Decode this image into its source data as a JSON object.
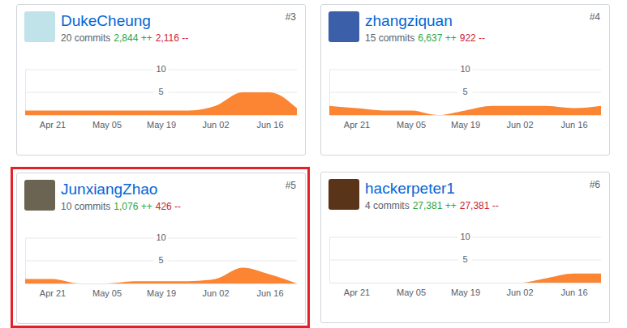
{
  "chart_data": [
    {
      "type": "area",
      "title": "DukeCheung",
      "subtitle": "20 commits",
      "annotations": [
        "#3",
        "2,844 ++",
        "2,116 --"
      ],
      "categories": [
        null,
        "Apr 21",
        null,
        "May 05",
        null,
        "May 19",
        null,
        "Jun 02",
        null,
        "Jun 16",
        null
      ],
      "values": [
        1,
        1,
        1,
        1,
        1,
        1,
        1,
        2,
        5,
        5,
        1.5
      ],
      "color": "#fb8532",
      "ylim": [
        0,
        10
      ],
      "yticks": [
        5,
        10
      ],
      "grid": true
    },
    {
      "type": "area",
      "title": "zhangziquan",
      "subtitle": "15 commits",
      "annotations": [
        "#4",
        "6,637 ++",
        "922 --"
      ],
      "categories": [
        null,
        "Apr 21",
        null,
        "May 05",
        null,
        "May 19",
        null,
        "Jun 02",
        null,
        "Jun 16",
        null
      ],
      "values": [
        2,
        1.5,
        1,
        1,
        0,
        1,
        2,
        2,
        2,
        1.5,
        2
      ],
      "color": "#fb8532",
      "ylim": [
        0,
        10
      ],
      "yticks": [
        5,
        10
      ],
      "grid": true
    },
    {
      "type": "area",
      "title": "JunxiangZhao",
      "subtitle": "10 commits",
      "annotations": [
        "#5",
        "1,076 ++",
        "426 --"
      ],
      "categories": [
        null,
        "Apr 21",
        null,
        "May 05",
        null,
        "May 19",
        null,
        "Jun 02",
        null,
        "Jun 16",
        null
      ],
      "values": [
        1,
        1,
        0,
        0,
        0.5,
        0.5,
        0.5,
        1,
        3.5,
        2,
        0
      ],
      "color": "#fb8532",
      "ylim": [
        0,
        10
      ],
      "yticks": [
        5,
        10
      ],
      "grid": true
    },
    {
      "type": "area",
      "title": "hackerpeter1",
      "subtitle": "4 commits",
      "annotations": [
        "#6",
        "27,381 ++",
        "27,381 --"
      ],
      "categories": [
        null,
        "Apr 21",
        null,
        "May 05",
        null,
        "May 19",
        null,
        "Jun 02",
        null,
        "Jun 16",
        null
      ],
      "values": [
        0,
        0,
        0,
        0,
        0,
        0,
        0,
        0,
        1,
        2,
        2
      ],
      "color": "#fb8532",
      "ylim": [
        0,
        10
      ],
      "yticks": [
        5,
        10
      ],
      "grid": true
    }
  ]
}
